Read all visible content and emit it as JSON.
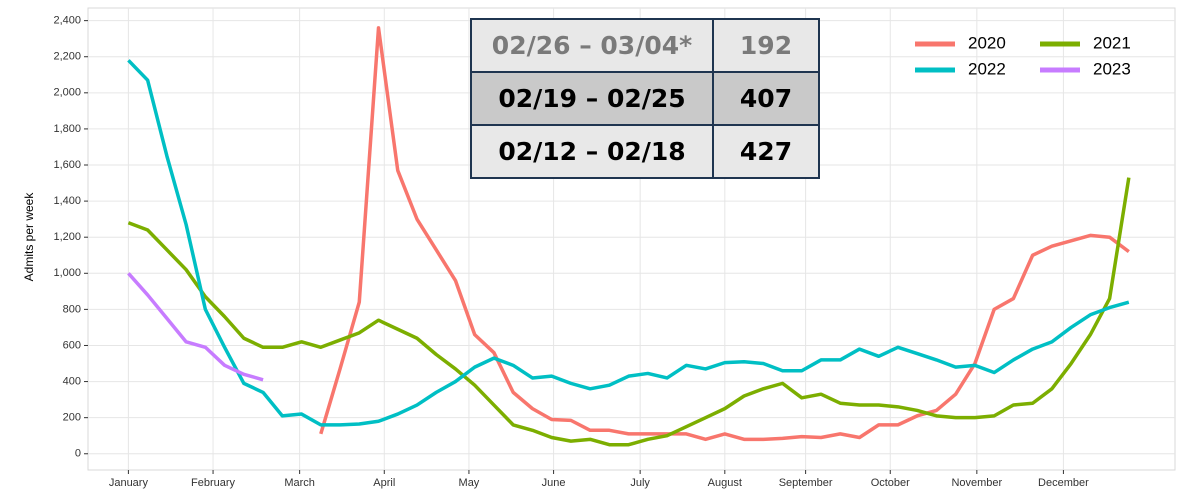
{
  "chart_data": {
    "type": "line",
    "ylabel": "Admits per week",
    "xlim": [
      -2.1,
      54.4
    ],
    "xticks": [
      {
        "value": 0,
        "label": "January"
      },
      {
        "value": 4.4,
        "label": "February"
      },
      {
        "value": 8.9,
        "label": "March"
      },
      {
        "value": 13.3,
        "label": "April"
      },
      {
        "value": 17.7,
        "label": "May"
      },
      {
        "value": 22.1,
        "label": "June"
      },
      {
        "value": 26.6,
        "label": "July"
      },
      {
        "value": 31.0,
        "label": "August"
      },
      {
        "value": 35.2,
        "label": "September"
      },
      {
        "value": 39.6,
        "label": "October"
      },
      {
        "value": 44.1,
        "label": "November"
      },
      {
        "value": 48.6,
        "label": "December"
      }
    ],
    "ylim": [
      -90,
      2470
    ],
    "yticks": [
      0,
      200,
      400,
      600,
      800,
      {
        "value": 1000,
        "label": "1,000"
      },
      {
        "value": 1200,
        "label": "1,200"
      },
      {
        "value": 1400,
        "label": "1,400"
      },
      {
        "value": 1600,
        "label": "1,600"
      },
      {
        "value": 1800,
        "label": "1,800"
      },
      {
        "value": 2000,
        "label": "2,000"
      },
      {
        "value": 2200,
        "label": "2,200"
      },
      {
        "value": 2400,
        "label": "2,400"
      }
    ],
    "grid": true,
    "legend": "top-right",
    "series": [
      {
        "name": "2020",
        "color": "#f8766d",
        "x": [
          10,
          11,
          12,
          13,
          14,
          15,
          16,
          17,
          18,
          19,
          20,
          21,
          22,
          23,
          24,
          25,
          26,
          27,
          28,
          29,
          30,
          31,
          32,
          33,
          34,
          35,
          36,
          37,
          38,
          39,
          40,
          41,
          42,
          43,
          44,
          45,
          46,
          47,
          48,
          49,
          50,
          51,
          52
        ],
        "values": [
          110,
          470,
          840,
          2360,
          1570,
          1300,
          1130,
          960,
          660,
          560,
          340,
          250,
          190,
          185,
          130,
          130,
          110,
          110,
          110,
          110,
          80,
          110,
          80,
          80,
          85,
          95,
          90,
          110,
          90,
          160,
          160,
          210,
          240,
          330,
          500,
          800,
          860,
          1100,
          1150,
          1180,
          1210,
          1200,
          1120
        ]
      },
      {
        "name": "2021",
        "color": "#7cae00",
        "x": [
          0,
          1,
          2,
          3,
          4,
          5,
          6,
          7,
          8,
          9,
          10,
          11,
          12,
          13,
          14,
          15,
          16,
          17,
          18,
          19,
          20,
          21,
          22,
          23,
          24,
          25,
          26,
          27,
          28,
          29,
          30,
          31,
          32,
          33,
          34,
          35,
          36,
          37,
          38,
          39,
          40,
          41,
          42,
          43,
          44,
          45,
          46,
          47,
          48,
          49,
          50,
          51,
          52
        ],
        "values": [
          1280,
          1240,
          1130,
          1020,
          870,
          760,
          640,
          590,
          590,
          620,
          590,
          630,
          670,
          740,
          690,
          640,
          550,
          470,
          380,
          270,
          160,
          130,
          90,
          70,
          80,
          50,
          50,
          80,
          100,
          150,
          200,
          250,
          320,
          360,
          390,
          310,
          330,
          280,
          270,
          270,
          260,
          240,
          210,
          200,
          200,
          210,
          270,
          280,
          360,
          500,
          660,
          860,
          1530
        ]
      },
      {
        "name": "2022",
        "color": "#00bfc4",
        "x": [
          0,
          1,
          2,
          3,
          4,
          5,
          6,
          7,
          8,
          9,
          10,
          11,
          12,
          13,
          14,
          15,
          16,
          17,
          18,
          19,
          20,
          21,
          22,
          23,
          24,
          25,
          26,
          27,
          28,
          29,
          30,
          31,
          32,
          33,
          34,
          35,
          36,
          37,
          38,
          39,
          40,
          41,
          42,
          43,
          44,
          45,
          46,
          47,
          48,
          49,
          50,
          51,
          52
        ],
        "values": [
          2180,
          2070,
          1650,
          1270,
          800,
          590,
          390,
          340,
          210,
          220,
          160,
          160,
          165,
          180,
          220,
          270,
          340,
          400,
          480,
          530,
          490,
          420,
          430,
          390,
          360,
          380,
          430,
          445,
          420,
          490,
          470,
          505,
          510,
          500,
          460,
          460,
          520,
          520,
          580,
          540,
          590,
          555,
          520,
          480,
          490,
          450,
          520,
          580,
          620,
          700,
          770,
          810,
          840
        ]
      },
      {
        "name": "2023",
        "color": "#c77cff",
        "x": [
          0,
          1,
          2,
          3,
          4,
          5,
          6,
          7
        ],
        "values": [
          1000,
          880,
          750,
          620,
          590,
          490,
          440,
          410
        ]
      }
    ]
  },
  "table": {
    "rows": [
      [
        "02/26 – 03/04*",
        "192"
      ],
      [
        "02/19 – 02/25",
        "407"
      ],
      [
        "02/12 – 02/18",
        "427"
      ]
    ]
  }
}
